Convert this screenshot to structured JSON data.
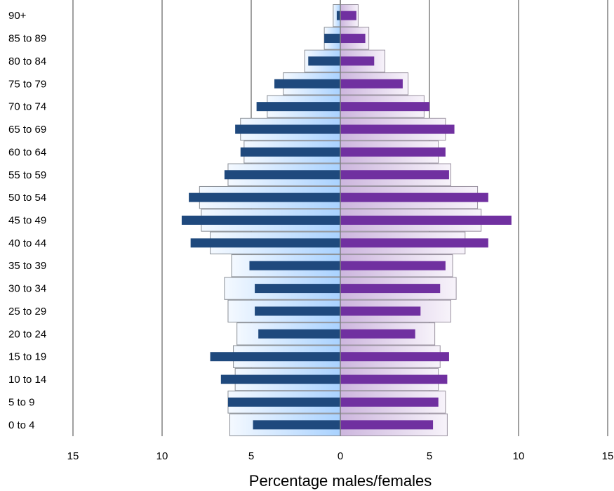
{
  "chart_data": {
    "type": "bar",
    "orientation": "horizontal",
    "xlabel": "Percentage males/females",
    "x_ticks": [
      "15",
      "10",
      "5",
      "0",
      "5",
      "10",
      "15"
    ],
    "xlim": [
      -15,
      15
    ],
    "grid": "vertical",
    "categories": [
      "90+",
      "85 to 89",
      "80 to 84",
      "75 to 79",
      "70 to 74",
      "65 to 69",
      "60 to 64",
      "55 to 59",
      "50 to 54",
      "45 to 49",
      "40 to 44",
      "35 to 39",
      "30 to 34",
      "25 to 29",
      "20 to 24",
      "15 to 19",
      "10 to 14",
      "5 to 9",
      "0 to 4"
    ],
    "series": [
      {
        "role": "male-reference",
        "color": "#cfe6ff",
        "values": [
          0.4,
          0.9,
          2.0,
          3.2,
          4.1,
          5.6,
          5.4,
          6.3,
          7.9,
          7.8,
          7.3,
          6.1,
          6.5,
          6.3,
          5.8,
          6.0,
          5.9,
          6.3,
          6.2
        ]
      },
      {
        "role": "female-reference",
        "color": "#e8dcf0",
        "values": [
          1.0,
          1.6,
          2.5,
          3.8,
          4.7,
          5.9,
          5.5,
          6.2,
          7.7,
          7.9,
          7.0,
          6.3,
          6.5,
          6.2,
          5.3,
          5.6,
          5.5,
          5.9,
          6.0
        ]
      },
      {
        "role": "male",
        "color": "#1f497d",
        "values": [
          0.2,
          0.9,
          1.8,
          3.7,
          4.7,
          5.9,
          5.6,
          6.5,
          8.5,
          8.9,
          8.4,
          5.1,
          4.8,
          4.8,
          4.6,
          7.3,
          6.7,
          6.3,
          4.9
        ]
      },
      {
        "role": "female",
        "color": "#7030a0",
        "values": [
          0.9,
          1.4,
          1.9,
          3.5,
          5.0,
          6.4,
          5.9,
          6.1,
          8.3,
          9.6,
          8.3,
          5.9,
          5.6,
          4.5,
          4.2,
          6.1,
          6.0,
          5.5,
          5.2
        ]
      }
    ]
  }
}
